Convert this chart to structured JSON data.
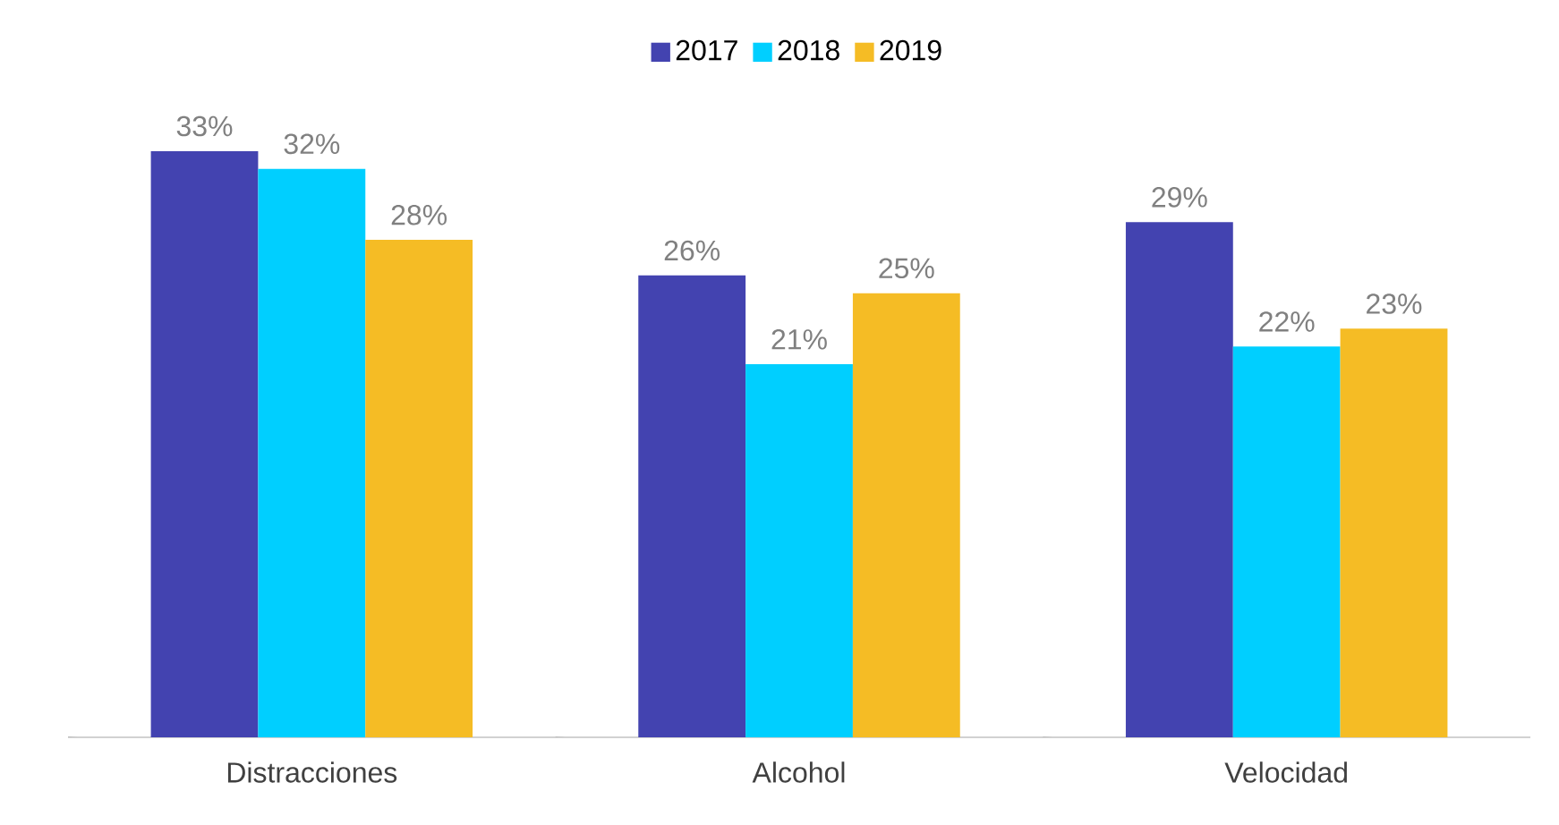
{
  "chart_data": {
    "type": "bar",
    "categories": [
      "Distracciones",
      "Alcohol",
      "Velocidad"
    ],
    "series": [
      {
        "name": "2017",
        "color": "#4343b0",
        "values": [
          33,
          26,
          29
        ],
        "value_labels": [
          "33%",
          "26%",
          "29%"
        ]
      },
      {
        "name": "2018",
        "color": "#00cfff",
        "values": [
          32,
          21,
          22
        ],
        "value_labels": [
          "32%",
          "21%",
          "22%"
        ]
      },
      {
        "name": "2019",
        "color": "#f5bc25",
        "values": [
          28,
          25,
          23
        ],
        "value_labels": [
          "28%",
          "25%",
          "23%"
        ]
      }
    ],
    "legend": "top",
    "tick_labels": "x",
    "grid": false
  }
}
